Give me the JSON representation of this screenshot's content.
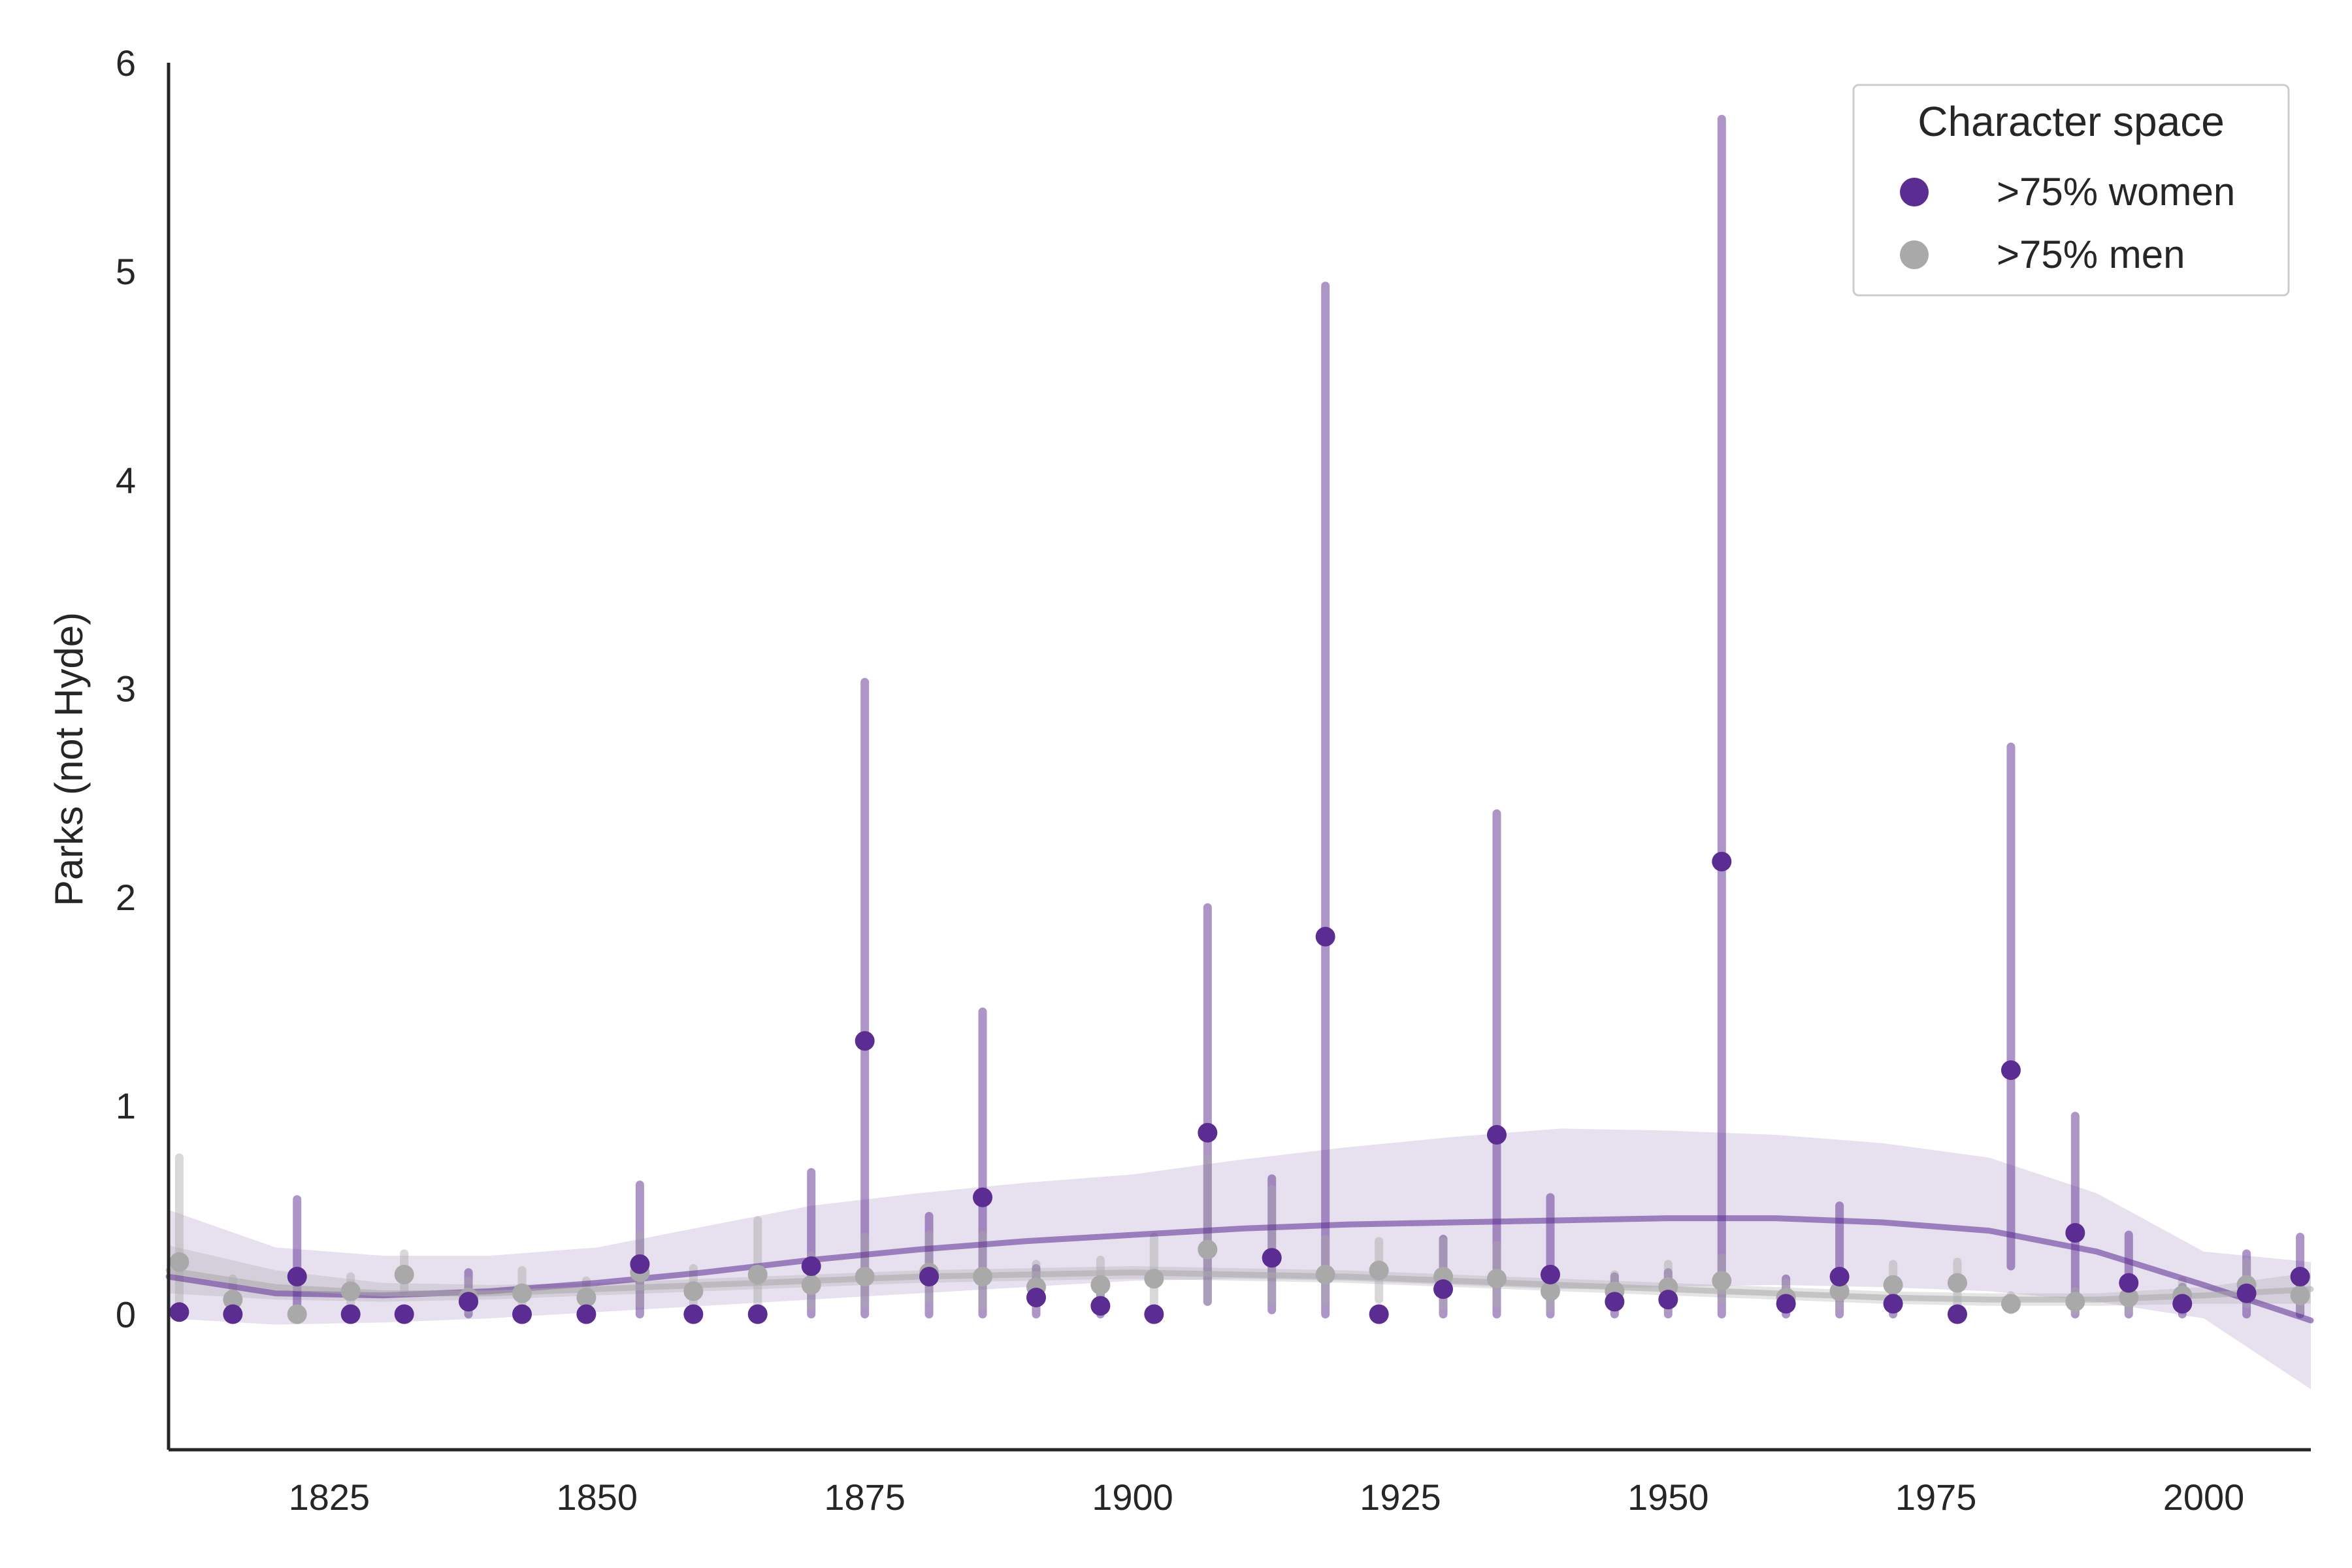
{
  "chart_data": {
    "type": "scatter",
    "title": "",
    "xlabel": "",
    "ylabel": "Parks (not Hyde)",
    "xlim": [
      1810,
      2010
    ],
    "ylim": [
      -0.65,
      6.0
    ],
    "x_ticks": [
      1825,
      1850,
      1875,
      1900,
      1925,
      1950,
      1975,
      2000
    ],
    "y_ticks": [
      0,
      1,
      2,
      3,
      4,
      5,
      6
    ],
    "grid": false,
    "legend": {
      "title": "Character space",
      "placement": "top-right"
    },
    "colors": {
      "women": "#5b2c91",
      "men": "#a9a9a9"
    },
    "series": [
      {
        "name": ">75% women",
        "color": "#5b2c91",
        "points": [
          {
            "x": 1811,
            "y": 0.01,
            "lo": 0.0,
            "hi": 0.0
          },
          {
            "x": 1816,
            "y": 0.0,
            "lo": 0.0,
            "hi": 0.0
          },
          {
            "x": 1822,
            "y": 0.18,
            "lo": 0.0,
            "hi": 0.55
          },
          {
            "x": 1827,
            "y": 0.0,
            "lo": 0.0,
            "hi": 0.0
          },
          {
            "x": 1832,
            "y": 0.0,
            "lo": 0.0,
            "hi": 0.0
          },
          {
            "x": 1838,
            "y": 0.06,
            "lo": 0.0,
            "hi": 0.2
          },
          {
            "x": 1843,
            "y": 0.0,
            "lo": 0.0,
            "hi": 0.0
          },
          {
            "x": 1849,
            "y": 0.0,
            "lo": 0.0,
            "hi": 0.0
          },
          {
            "x": 1854,
            "y": 0.24,
            "lo": 0.0,
            "hi": 0.62
          },
          {
            "x": 1859,
            "y": 0.0,
            "lo": 0.0,
            "hi": 0.0
          },
          {
            "x": 1865,
            "y": 0.0,
            "lo": 0.0,
            "hi": 0.0
          },
          {
            "x": 1870,
            "y": 0.23,
            "lo": 0.0,
            "hi": 0.68
          },
          {
            "x": 1875,
            "y": 1.31,
            "lo": 0.0,
            "hi": 3.03
          },
          {
            "x": 1881,
            "y": 0.18,
            "lo": 0.0,
            "hi": 0.47
          },
          {
            "x": 1886,
            "y": 0.56,
            "lo": 0.0,
            "hi": 1.45
          },
          {
            "x": 1891,
            "y": 0.08,
            "lo": 0.0,
            "hi": 0.22
          },
          {
            "x": 1897,
            "y": 0.04,
            "lo": 0.0,
            "hi": 0.12
          },
          {
            "x": 1902,
            "y": 0.0,
            "lo": 0.0,
            "hi": 0.0
          },
          {
            "x": 1907,
            "y": 0.87,
            "lo": 0.06,
            "hi": 1.95
          },
          {
            "x": 1913,
            "y": 0.27,
            "lo": 0.02,
            "hi": 0.65
          },
          {
            "x": 1918,
            "y": 1.81,
            "lo": 0.0,
            "hi": 4.93
          },
          {
            "x": 1923,
            "y": 0.0,
            "lo": 0.0,
            "hi": 0.0
          },
          {
            "x": 1929,
            "y": 0.12,
            "lo": 0.0,
            "hi": 0.36
          },
          {
            "x": 1934,
            "y": 0.86,
            "lo": 0.0,
            "hi": 2.4
          },
          {
            "x": 1939,
            "y": 0.19,
            "lo": 0.0,
            "hi": 0.56
          },
          {
            "x": 1945,
            "y": 0.06,
            "lo": 0.0,
            "hi": 0.18
          },
          {
            "x": 1950,
            "y": 0.07,
            "lo": 0.0,
            "hi": 0.2
          },
          {
            "x": 1955,
            "y": 2.17,
            "lo": 0.0,
            "hi": 5.73
          },
          {
            "x": 1961,
            "y": 0.05,
            "lo": 0.0,
            "hi": 0.17
          },
          {
            "x": 1966,
            "y": 0.18,
            "lo": 0.0,
            "hi": 0.52
          },
          {
            "x": 1971,
            "y": 0.05,
            "lo": 0.0,
            "hi": 0.15
          },
          {
            "x": 1977,
            "y": 0.0,
            "lo": 0.0,
            "hi": 0.0
          },
          {
            "x": 1982,
            "y": 1.17,
            "lo": 0.23,
            "hi": 2.72
          },
          {
            "x": 1988,
            "y": 0.39,
            "lo": 0.0,
            "hi": 0.95
          },
          {
            "x": 1993,
            "y": 0.15,
            "lo": 0.0,
            "hi": 0.38
          },
          {
            "x": 1998,
            "y": 0.05,
            "lo": 0.0,
            "hi": 0.13
          },
          {
            "x": 2004,
            "y": 0.1,
            "lo": 0.0,
            "hi": 0.29
          },
          {
            "x": 2009,
            "y": 0.18,
            "lo": 0.0,
            "hi": 0.37
          }
        ],
        "trend": [
          {
            "x": 1810,
            "y": 0.18,
            "lo": -0.02,
            "hi": 0.5
          },
          {
            "x": 1820,
            "y": 0.1,
            "lo": -0.05,
            "hi": 0.32
          },
          {
            "x": 1830,
            "y": 0.09,
            "lo": -0.04,
            "hi": 0.28
          },
          {
            "x": 1840,
            "y": 0.11,
            "lo": -0.02,
            "hi": 0.28
          },
          {
            "x": 1850,
            "y": 0.15,
            "lo": 0.01,
            "hi": 0.32
          },
          {
            "x": 1860,
            "y": 0.2,
            "lo": 0.04,
            "hi": 0.42
          },
          {
            "x": 1870,
            "y": 0.26,
            "lo": 0.07,
            "hi": 0.52
          },
          {
            "x": 1880,
            "y": 0.31,
            "lo": 0.1,
            "hi": 0.58
          },
          {
            "x": 1890,
            "y": 0.35,
            "lo": 0.13,
            "hi": 0.63
          },
          {
            "x": 1900,
            "y": 0.38,
            "lo": 0.16,
            "hi": 0.67
          },
          {
            "x": 1910,
            "y": 0.41,
            "lo": 0.17,
            "hi": 0.74
          },
          {
            "x": 1920,
            "y": 0.43,
            "lo": 0.16,
            "hi": 0.8
          },
          {
            "x": 1930,
            "y": 0.44,
            "lo": 0.14,
            "hi": 0.85
          },
          {
            "x": 1940,
            "y": 0.45,
            "lo": 0.12,
            "hi": 0.89
          },
          {
            "x": 1950,
            "y": 0.46,
            "lo": 0.13,
            "hi": 0.88
          },
          {
            "x": 1960,
            "y": 0.46,
            "lo": 0.14,
            "hi": 0.86
          },
          {
            "x": 1970,
            "y": 0.44,
            "lo": 0.13,
            "hi": 0.82
          },
          {
            "x": 1980,
            "y": 0.4,
            "lo": 0.11,
            "hi": 0.75
          },
          {
            "x": 1990,
            "y": 0.3,
            "lo": 0.06,
            "hi": 0.58
          },
          {
            "x": 2000,
            "y": 0.14,
            "lo": -0.02,
            "hi": 0.3
          },
          {
            "x": 2010,
            "y": -0.03,
            "lo": -0.36,
            "hi": 0.25
          }
        ]
      },
      {
        "name": ">75% men",
        "color": "#a9a9a9",
        "points": [
          {
            "x": 1811,
            "y": 0.25,
            "lo": 0.0,
            "hi": 0.75
          },
          {
            "x": 1816,
            "y": 0.07,
            "lo": 0.0,
            "hi": 0.17
          },
          {
            "x": 1822,
            "y": 0.0,
            "lo": 0.0,
            "hi": 0.0
          },
          {
            "x": 1827,
            "y": 0.11,
            "lo": 0.0,
            "hi": 0.18
          },
          {
            "x": 1832,
            "y": 0.19,
            "lo": 0.11,
            "hi": 0.29
          },
          {
            "x": 1838,
            "y": 0.08,
            "lo": 0.02,
            "hi": 0.16
          },
          {
            "x": 1843,
            "y": 0.1,
            "lo": 0.02,
            "hi": 0.21
          },
          {
            "x": 1849,
            "y": 0.08,
            "lo": 0.02,
            "hi": 0.16
          },
          {
            "x": 1854,
            "y": 0.2,
            "lo": 0.05,
            "hi": 0.38
          },
          {
            "x": 1859,
            "y": 0.11,
            "lo": 0.02,
            "hi": 0.22
          },
          {
            "x": 1865,
            "y": 0.19,
            "lo": 0.04,
            "hi": 0.45
          },
          {
            "x": 1870,
            "y": 0.14,
            "lo": 0.04,
            "hi": 0.28
          },
          {
            "x": 1875,
            "y": 0.18,
            "lo": 0.05,
            "hi": 0.37
          },
          {
            "x": 1881,
            "y": 0.2,
            "lo": 0.07,
            "hi": 0.38
          },
          {
            "x": 1886,
            "y": 0.18,
            "lo": 0.04,
            "hi": 0.38
          },
          {
            "x": 1891,
            "y": 0.13,
            "lo": 0.04,
            "hi": 0.24
          },
          {
            "x": 1897,
            "y": 0.14,
            "lo": 0.04,
            "hi": 0.26
          },
          {
            "x": 1902,
            "y": 0.17,
            "lo": 0.04,
            "hi": 0.37
          },
          {
            "x": 1907,
            "y": 0.31,
            "lo": 0.06,
            "hi": 0.75
          },
          {
            "x": 1913,
            "y": 0.27,
            "lo": 0.06,
            "hi": 0.6
          },
          {
            "x": 1918,
            "y": 0.19,
            "lo": 0.06,
            "hi": 0.36
          },
          {
            "x": 1923,
            "y": 0.21,
            "lo": 0.07,
            "hi": 0.35
          },
          {
            "x": 1929,
            "y": 0.18,
            "lo": 0.04,
            "hi": 0.35
          },
          {
            "x": 1934,
            "y": 0.17,
            "lo": 0.05,
            "hi": 0.33
          },
          {
            "x": 1939,
            "y": 0.11,
            "lo": 0.03,
            "hi": 0.2
          },
          {
            "x": 1945,
            "y": 0.11,
            "lo": 0.03,
            "hi": 0.19
          },
          {
            "x": 1950,
            "y": 0.13,
            "lo": 0.03,
            "hi": 0.24
          },
          {
            "x": 1955,
            "y": 0.16,
            "lo": 0.07,
            "hi": 0.27
          },
          {
            "x": 1961,
            "y": 0.08,
            "lo": 0.03,
            "hi": 0.15
          },
          {
            "x": 1966,
            "y": 0.11,
            "lo": 0.04,
            "hi": 0.2
          },
          {
            "x": 1971,
            "y": 0.14,
            "lo": 0.04,
            "hi": 0.24
          },
          {
            "x": 1977,
            "y": 0.15,
            "lo": 0.05,
            "hi": 0.25
          },
          {
            "x": 1982,
            "y": 0.05,
            "lo": 0.02,
            "hi": 0.09
          },
          {
            "x": 1988,
            "y": 0.06,
            "lo": 0.02,
            "hi": 0.11
          },
          {
            "x": 1993,
            "y": 0.08,
            "lo": 0.02,
            "hi": 0.16
          },
          {
            "x": 1998,
            "y": 0.09,
            "lo": 0.03,
            "hi": 0.16
          },
          {
            "x": 2004,
            "y": 0.14,
            "lo": 0.05,
            "hi": 0.25
          },
          {
            "x": 2009,
            "y": 0.09,
            "lo": 0.02,
            "hi": 0.18
          }
        ],
        "trend": [
          {
            "x": 1810,
            "y": 0.21,
            "lo": 0.1,
            "hi": 0.33
          },
          {
            "x": 1820,
            "y": 0.13,
            "lo": 0.07,
            "hi": 0.21
          },
          {
            "x": 1830,
            "y": 0.1,
            "lo": 0.06,
            "hi": 0.15
          },
          {
            "x": 1840,
            "y": 0.1,
            "lo": 0.07,
            "hi": 0.14
          },
          {
            "x": 1850,
            "y": 0.12,
            "lo": 0.09,
            "hi": 0.15
          },
          {
            "x": 1860,
            "y": 0.14,
            "lo": 0.11,
            "hi": 0.17
          },
          {
            "x": 1870,
            "y": 0.16,
            "lo": 0.13,
            "hi": 0.19
          },
          {
            "x": 1880,
            "y": 0.18,
            "lo": 0.15,
            "hi": 0.21
          },
          {
            "x": 1890,
            "y": 0.19,
            "lo": 0.16,
            "hi": 0.22
          },
          {
            "x": 1900,
            "y": 0.2,
            "lo": 0.17,
            "hi": 0.23
          },
          {
            "x": 1910,
            "y": 0.19,
            "lo": 0.16,
            "hi": 0.22
          },
          {
            "x": 1920,
            "y": 0.18,
            "lo": 0.15,
            "hi": 0.21
          },
          {
            "x": 1930,
            "y": 0.16,
            "lo": 0.13,
            "hi": 0.19
          },
          {
            "x": 1940,
            "y": 0.14,
            "lo": 0.11,
            "hi": 0.17
          },
          {
            "x": 1950,
            "y": 0.12,
            "lo": 0.09,
            "hi": 0.15
          },
          {
            "x": 1960,
            "y": 0.1,
            "lo": 0.07,
            "hi": 0.13
          },
          {
            "x": 1970,
            "y": 0.08,
            "lo": 0.05,
            "hi": 0.11
          },
          {
            "x": 1980,
            "y": 0.07,
            "lo": 0.04,
            "hi": 0.1
          },
          {
            "x": 1990,
            "y": 0.07,
            "lo": 0.04,
            "hi": 0.1
          },
          {
            "x": 2000,
            "y": 0.09,
            "lo": 0.05,
            "hi": 0.13
          },
          {
            "x": 2010,
            "y": 0.12,
            "lo": 0.05,
            "hi": 0.2
          }
        ]
      }
    ]
  }
}
